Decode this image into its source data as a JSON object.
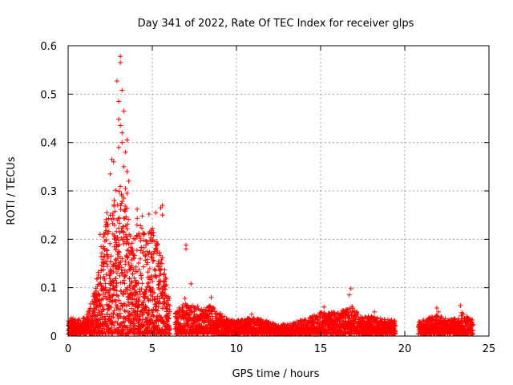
{
  "chart_data": {
    "type": "scatter",
    "title": "Day 341 of 2022, Rate Of TEC Index for receiver glps",
    "xlabel": "GPS time / hours",
    "ylabel": "ROTI / TECUs",
    "xlim": [
      0,
      25
    ],
    "ylim": [
      0,
      0.6
    ],
    "xticks": [
      0,
      5,
      10,
      15,
      20,
      25
    ],
    "yticks": [
      0,
      0.1,
      0.2,
      0.3,
      0.4,
      0.5,
      0.6
    ],
    "xtick_labels": [
      "0",
      "5",
      "10",
      "15",
      "20",
      "25"
    ],
    "ytick_labels": [
      "0",
      "0.1",
      "0.2",
      "0.3",
      "0.4",
      "0.5",
      "0.6"
    ],
    "grid": true,
    "marker": "plus",
    "marker_color": "#ff0000",
    "outliers": [
      [
        3.1,
        0.578
      ],
      [
        3.1,
        0.565
      ],
      [
        2.9,
        0.527
      ],
      [
        3.2,
        0.508
      ],
      [
        3.0,
        0.485
      ],
      [
        3.3,
        0.465
      ],
      [
        3.0,
        0.448
      ],
      [
        3.1,
        0.435
      ],
      [
        3.2,
        0.42
      ],
      [
        3.5,
        0.405
      ],
      [
        3.2,
        0.4
      ],
      [
        3.0,
        0.39
      ],
      [
        3.4,
        0.38
      ],
      [
        2.6,
        0.365
      ],
      [
        2.7,
        0.36
      ],
      [
        3.3,
        0.35
      ],
      [
        3.5,
        0.34
      ],
      [
        2.5,
        0.335
      ],
      [
        3.6,
        0.32
      ],
      [
        3.4,
        0.305
      ],
      [
        3.5,
        0.295
      ],
      [
        3.3,
        0.285
      ],
      [
        5.6,
        0.27
      ],
      [
        5.5,
        0.265
      ],
      [
        4.1,
        0.262
      ],
      [
        2.3,
        0.255
      ],
      [
        2.5,
        0.25
      ],
      [
        4.4,
        0.248
      ],
      [
        5.2,
        0.255
      ],
      [
        4.8,
        0.252
      ],
      [
        5.6,
        0.25
      ],
      [
        1.9,
        0.21
      ],
      [
        2.1,
        0.205
      ],
      [
        7.0,
        0.188
      ],
      [
        7.0,
        0.18
      ],
      [
        7.3,
        0.108
      ],
      [
        8.5,
        0.08
      ],
      [
        16.8,
        0.098
      ],
      [
        16.7,
        0.085
      ],
      [
        15.2,
        0.06
      ],
      [
        21.9,
        0.058
      ],
      [
        23.3,
        0.063
      ],
      [
        22.0,
        0.05
      ],
      [
        10.9,
        0.045
      ],
      [
        18.2,
        0.05
      ]
    ],
    "envelope": [
      [
        0.0,
        0.035
      ],
      [
        0.5,
        0.03
      ],
      [
        1.0,
        0.035
      ],
      [
        1.3,
        0.06
      ],
      [
        1.5,
        0.08
      ],
      [
        1.8,
        0.13
      ],
      [
        2.0,
        0.2
      ],
      [
        2.3,
        0.25
      ],
      [
        2.6,
        0.24
      ],
      [
        2.8,
        0.3
      ],
      [
        3.0,
        0.32
      ],
      [
        3.3,
        0.28
      ],
      [
        3.6,
        0.25
      ],
      [
        3.9,
        0.2
      ],
      [
        4.1,
        0.24
      ],
      [
        4.4,
        0.22
      ],
      [
        4.7,
        0.2
      ],
      [
        5.0,
        0.23
      ],
      [
        5.3,
        0.19
      ],
      [
        5.6,
        0.16
      ],
      [
        5.9,
        0.1
      ],
      [
        6.1,
        0.06
      ],
      [
        6.5,
        0.05
      ],
      [
        7.0,
        0.08
      ],
      [
        7.5,
        0.06
      ],
      [
        8.0,
        0.055
      ],
      [
        8.5,
        0.06
      ],
      [
        9.0,
        0.045
      ],
      [
        9.5,
        0.03
      ],
      [
        10.0,
        0.03
      ],
      [
        11.0,
        0.035
      ],
      [
        12.0,
        0.025
      ],
      [
        13.0,
        0.02
      ],
      [
        14.0,
        0.03
      ],
      [
        15.0,
        0.045
      ],
      [
        16.0,
        0.045
      ],
      [
        16.8,
        0.06
      ],
      [
        17.5,
        0.035
      ],
      [
        18.0,
        0.04
      ],
      [
        19.0,
        0.03
      ],
      [
        19.4,
        0.03
      ],
      [
        20.8,
        0.025
      ],
      [
        21.5,
        0.035
      ],
      [
        22.0,
        0.04
      ],
      [
        22.5,
        0.03
      ],
      [
        23.0,
        0.035
      ],
      [
        23.4,
        0.045
      ],
      [
        24.0,
        0.03
      ]
    ],
    "gaps": [
      [
        6.05,
        6.35
      ],
      [
        19.45,
        20.8
      ]
    ]
  }
}
